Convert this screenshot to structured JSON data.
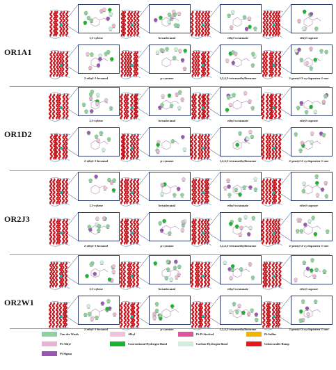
{
  "receptors": [
    {
      "name": "OR1A1",
      "ligands": [
        "1,3-xylene",
        "hexadecanal",
        "ethyl-octanoate",
        "ethyl-caprate",
        "2-ethyl-1-hexanol",
        "p-cymene",
        "1,2,4,5-tetramethylbenzene",
        "2-pentyl-2-cyclopenten-1-one"
      ]
    },
    {
      "name": "OR1D2",
      "ligands": [
        "1,3-xylene",
        "hexadecanal",
        "ethyl-octanoate",
        "ethyl-caprate",
        "2-ethyl-1-hexanol",
        "p-cymene",
        "1,2,4,5-tetramethylbenzene",
        "2-pentyl-2-cyclopenten-1-one"
      ]
    },
    {
      "name": "OR2J3",
      "ligands": [
        "1,3-xylene",
        "hexadecanal",
        "ethyl-octanoate",
        "ethyl-caprate",
        "2-ethyl-1-hexanol",
        "p-cymene",
        "1,2,4,5-tetramethylbenzene",
        "2-pentyl-2-cyclopenten-1-one"
      ]
    },
    {
      "name": "OR2W1",
      "ligands": [
        "1,3-xylene",
        "hexadecanal",
        "ethyl-octanoate",
        "ethyl-caprate",
        "2-ethyl-1-hexanol",
        "p-cymene",
        "1,2,4,5-tetramethylbenzene",
        "2-pentyl-2-cyclopenten-1-one"
      ]
    }
  ],
  "legend": [
    {
      "label": "Van der Waals",
      "color": "#8fd19e"
    },
    {
      "label": "Alkyl",
      "color": "#f2c2dc"
    },
    {
      "label": "Pi-Pi Stacked",
      "color": "#e0559a"
    },
    {
      "label": "Pi-Sulfur",
      "color": "#f0b400"
    },
    {
      "label": "Pi-Alkyl",
      "color": "#eab3d3"
    },
    {
      "label": "Conventional Hydrogen Bond",
      "color": "#19b532"
    },
    {
      "label": "Carbon Hydrogen Bond",
      "color": "#cfeedd"
    },
    {
      "label": "Unfavorable Bump",
      "color": "#e8161b"
    },
    {
      "label": "Pi-Sigma",
      "color": "#9b56b5"
    }
  ]
}
